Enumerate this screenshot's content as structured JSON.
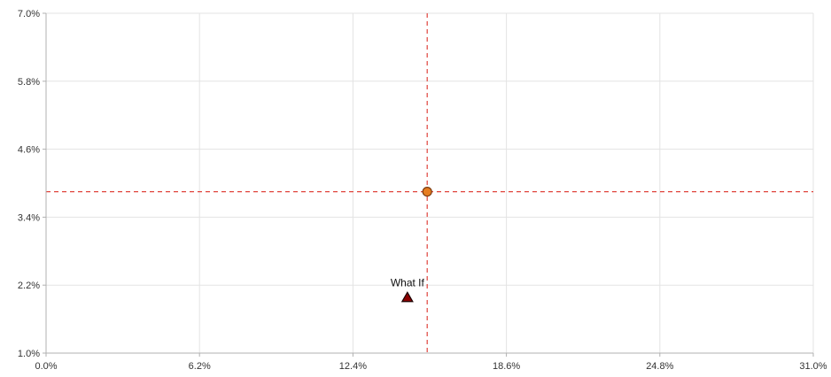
{
  "chart_data": {
    "type": "scatter",
    "xlim": [
      0,
      31
    ],
    "ylim": [
      1,
      7
    ],
    "x_ticks": [
      0,
      6.2,
      12.4,
      18.6,
      24.8,
      31
    ],
    "y_ticks": [
      1,
      2.2,
      3.4,
      4.6,
      5.8,
      7
    ],
    "x_tick_labels": [
      "0.0%",
      "6.2%",
      "12.4%",
      "18.6%",
      "24.8%",
      "31.0%"
    ],
    "y_tick_labels": [
      "1.0%",
      "2.2%",
      "3.4%",
      "4.6%",
      "5.8%",
      "7.0%"
    ],
    "grid": true,
    "reference_lines": {
      "x": 15.4,
      "y": 3.85,
      "style": "dashed",
      "color": "#e0443c"
    },
    "points": [
      {
        "label": "",
        "x": 15.4,
        "y": 3.85,
        "marker": "circle",
        "fill": "#e67e22",
        "stroke": "#7a3a10"
      },
      {
        "label": "What If",
        "x": 14.6,
        "y": 1.98,
        "marker": "triangle",
        "fill": "#8b0000",
        "stroke": "#1a0000"
      }
    ],
    "colors": {
      "grid": "#e3e3e3",
      "axis": "#b0b0b0",
      "tick_text": "#333333"
    }
  }
}
